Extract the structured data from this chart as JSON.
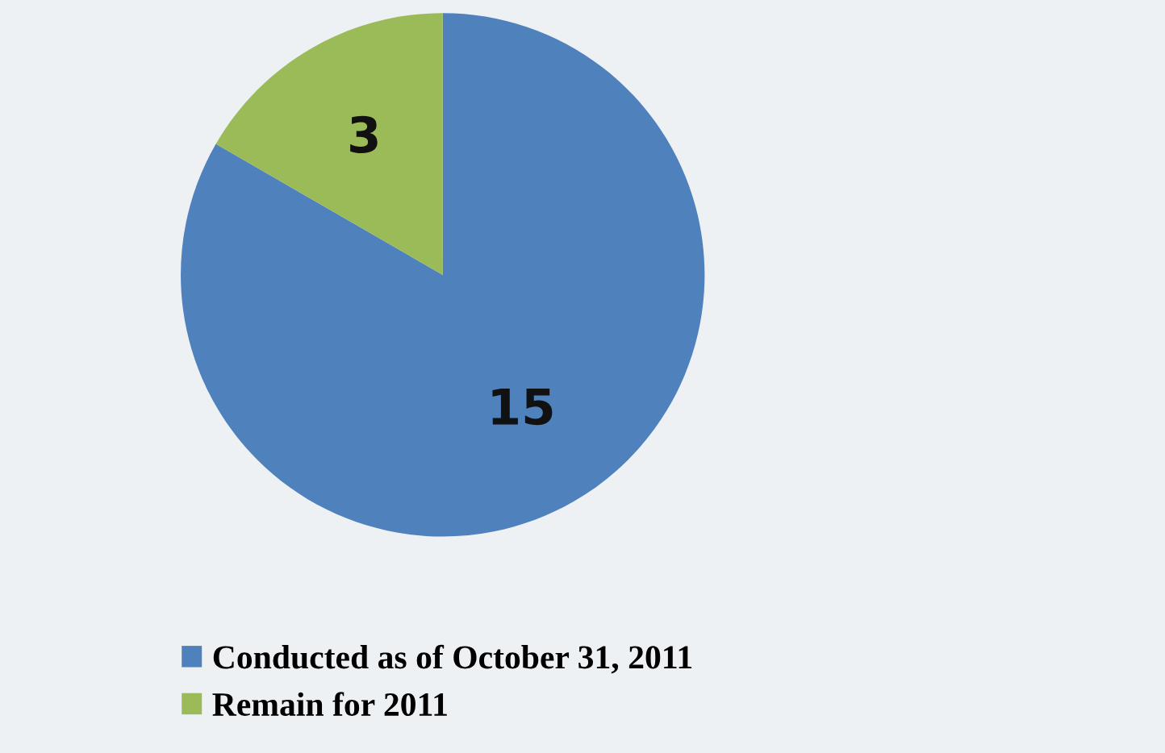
{
  "chart_data": {
    "type": "pie",
    "categories": [
      "Conducted as of October 31, 2011",
      "Remain for 2011"
    ],
    "values": [
      15,
      3
    ],
    "colors": [
      "#4f81bd",
      "#9bbb59"
    ],
    "data_labels": true,
    "legend": "bottom left"
  }
}
